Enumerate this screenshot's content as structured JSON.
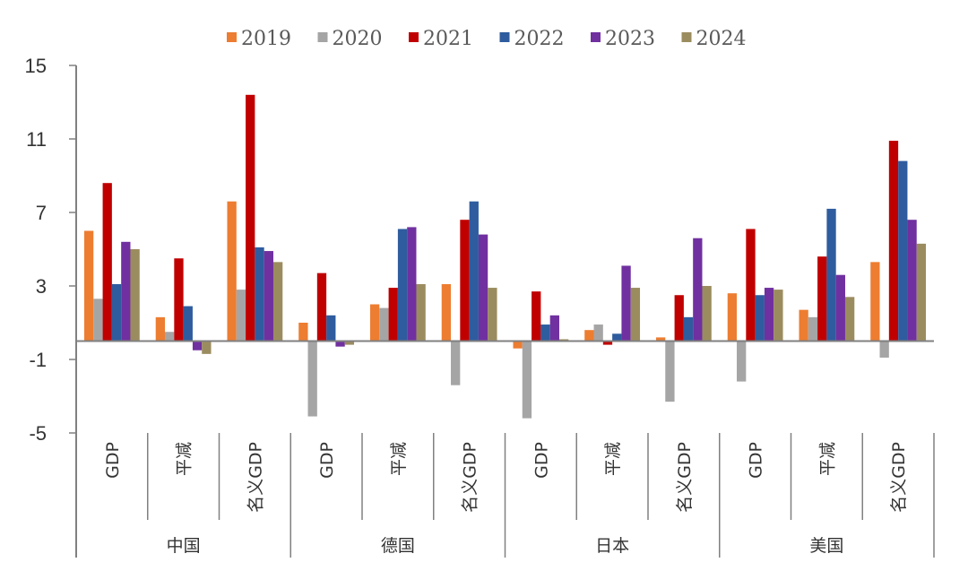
{
  "chart_data": {
    "type": "bar",
    "series": [
      {
        "name": "2019",
        "color": "#ED7D31",
        "values": [
          6.0,
          1.3,
          7.6,
          1.0,
          2.0,
          3.1,
          -0.4,
          0.6,
          0.2,
          2.6,
          1.7,
          4.3
        ]
      },
      {
        "name": "2020",
        "color": "#A5A5A5",
        "values": [
          2.3,
          0.5,
          2.8,
          -4.1,
          1.8,
          -2.4,
          -4.2,
          0.9,
          -3.3,
          -2.2,
          1.3,
          -0.9
        ]
      },
      {
        "name": "2021",
        "color": "#C00000",
        "values": [
          8.6,
          4.5,
          13.4,
          3.7,
          2.9,
          6.6,
          2.7,
          -0.2,
          2.5,
          6.1,
          4.6,
          10.9
        ]
      },
      {
        "name": "2022",
        "color": "#2E5C9E",
        "values": [
          3.1,
          1.9,
          5.1,
          1.4,
          6.1,
          7.6,
          0.9,
          0.4,
          1.3,
          2.5,
          7.2,
          9.8
        ]
      },
      {
        "name": "2023",
        "color": "#7030A0",
        "values": [
          5.4,
          -0.5,
          4.9,
          -0.3,
          6.2,
          5.8,
          1.4,
          4.1,
          5.6,
          2.9,
          3.6,
          6.6
        ]
      },
      {
        "name": "2024",
        "color": "#9B8C5F",
        "values": [
          5.0,
          -0.7,
          4.3,
          -0.2,
          3.1,
          2.9,
          0.1,
          2.9,
          3.0,
          2.8,
          2.4,
          5.3
        ]
      }
    ],
    "categories": [
      "GDP",
      "平减",
      "名义GDP",
      "GDP",
      "平减",
      "名义GDP",
      "GDP",
      "平减",
      "名义GDP",
      "GDP",
      "平减",
      "名义GDP"
    ],
    "groups": [
      {
        "name": "中国",
        "span": 3
      },
      {
        "name": "德国",
        "span": 3
      },
      {
        "name": "日本",
        "span": 3
      },
      {
        "name": "美国",
        "span": 3
      }
    ],
    "yticks": [
      "15",
      "11",
      "7",
      "3",
      "-1",
      "-5"
    ],
    "ylim": [
      -5,
      15
    ],
    "legend_position": "top-center",
    "grid": false
  }
}
